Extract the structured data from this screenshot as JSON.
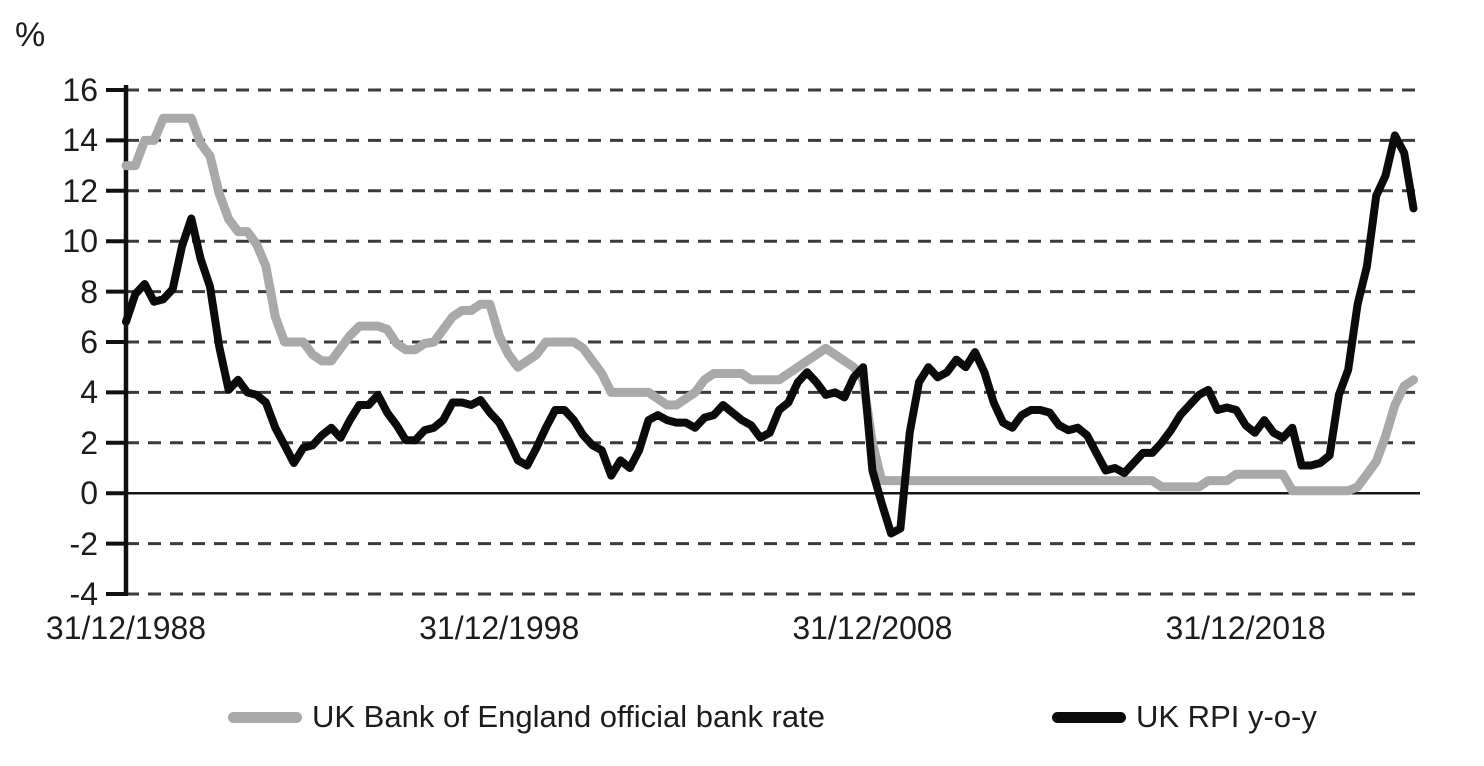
{
  "chart_data": {
    "type": "line",
    "unit_label": "%",
    "ylim": [
      -4,
      16
    ],
    "y_ticks": [
      16,
      14,
      12,
      10,
      8,
      6,
      4,
      2,
      0,
      -2,
      -4
    ],
    "x_start_year": 1989.0,
    "x_step_years": 0.25,
    "x_ticks": [
      {
        "label": "31/12/1988",
        "year": 1989
      },
      {
        "label": "31/12/1998",
        "year": 1999
      },
      {
        "label": "31/12/2008",
        "year": 2009
      },
      {
        "label": "31/12/2018",
        "year": 2019
      }
    ],
    "grid": "horizontal-dashed",
    "legend_position": "bottom",
    "colors": {
      "gridline": "#3b3b3b",
      "zero_line": "#161616",
      "axis": "#111111",
      "text": "#1c1c1c"
    },
    "series": [
      {
        "name": "UK Bank of England official bank rate",
        "data_name": "bank-rate-line",
        "color": "#a9a9a9",
        "line_width": 9,
        "values": [
          13,
          13,
          14,
          14,
          14.88,
          14.88,
          14.88,
          14.88,
          13.88,
          13.38,
          11.88,
          10.88,
          10.38,
          10.38,
          9.88,
          9,
          7,
          6,
          6,
          6,
          5.5,
          5.25,
          5.25,
          5.75,
          6.25,
          6.63,
          6.63,
          6.63,
          6.5,
          5.94,
          5.69,
          5.69,
          5.94,
          6,
          6.5,
          7,
          7.25,
          7.25,
          7.5,
          7.5,
          6.25,
          5.5,
          5,
          5.25,
          5.5,
          6,
          6,
          6,
          6,
          5.75,
          5.25,
          4.75,
          4,
          4,
          4,
          4,
          4,
          3.75,
          3.5,
          3.5,
          3.75,
          4,
          4.5,
          4.75,
          4.75,
          4.75,
          4.75,
          4.5,
          4.5,
          4.5,
          4.5,
          4.75,
          5,
          5.25,
          5.5,
          5.75,
          5.5,
          5.25,
          5,
          4.5,
          2,
          0.5,
          0.5,
          0.5,
          0.5,
          0.5,
          0.5,
          0.5,
          0.5,
          0.5,
          0.5,
          0.5,
          0.5,
          0.5,
          0.5,
          0.5,
          0.5,
          0.5,
          0.5,
          0.5,
          0.5,
          0.5,
          0.5,
          0.5,
          0.5,
          0.5,
          0.5,
          0.5,
          0.5,
          0.5,
          0.5,
          0.25,
          0.25,
          0.25,
          0.25,
          0.25,
          0.5,
          0.5,
          0.5,
          0.75,
          0.75,
          0.75,
          0.75,
          0.75,
          0.75,
          0.1,
          0.1,
          0.1,
          0.1,
          0.1,
          0.1,
          0.1,
          0.25,
          0.75,
          1.25,
          2.25,
          3.5,
          4.25,
          4.5
        ]
      },
      {
        "name": "UK RPI y-o-y",
        "data_name": "rpi-line",
        "color": "#0b0b0b",
        "line_width": 8,
        "values": [
          6.8,
          7.9,
          8.3,
          7.6,
          7.7,
          8.1,
          9.8,
          10.9,
          9.3,
          8.2,
          5.8,
          4.1,
          4.5,
          4.0,
          3.9,
          3.6,
          2.6,
          1.9,
          1.2,
          1.8,
          1.9,
          2.3,
          2.6,
          2.2,
          2.9,
          3.5,
          3.5,
          3.9,
          3.2,
          2.7,
          2.1,
          2.1,
          2.5,
          2.6,
          2.9,
          3.6,
          3.6,
          3.5,
          3.7,
          3.2,
          2.8,
          2.1,
          1.3,
          1.1,
          1.8,
          2.6,
          3.3,
          3.3,
          2.9,
          2.3,
          1.9,
          1.7,
          0.7,
          1.3,
          1.0,
          1.7,
          2.9,
          3.1,
          2.9,
          2.8,
          2.8,
          2.6,
          3.0,
          3.1,
          3.5,
          3.2,
          2.9,
          2.7,
          2.2,
          2.4,
          3.3,
          3.6,
          4.4,
          4.8,
          4.4,
          3.9,
          4.0,
          3.8,
          4.6,
          5.0,
          0.9,
          -0.4,
          -1.6,
          -1.4,
          2.4,
          4.4,
          5.0,
          4.6,
          4.8,
          5.3,
          5.0,
          5.6,
          4.8,
          3.6,
          2.8,
          2.6,
          3.1,
          3.3,
          3.3,
          3.2,
          2.7,
          2.5,
          2.6,
          2.3,
          1.6,
          0.9,
          1.0,
          0.8,
          1.2,
          1.6,
          1.6,
          2.0,
          2.5,
          3.1,
          3.5,
          3.9,
          4.1,
          3.3,
          3.4,
          3.3,
          2.7,
          2.4,
          2.9,
          2.4,
          2.2,
          2.6,
          1.1,
          1.1,
          1.2,
          1.5,
          3.9,
          4.9,
          7.5,
          9.0,
          11.8,
          12.6,
          14.2,
          13.5,
          11.3
        ]
      }
    ]
  }
}
